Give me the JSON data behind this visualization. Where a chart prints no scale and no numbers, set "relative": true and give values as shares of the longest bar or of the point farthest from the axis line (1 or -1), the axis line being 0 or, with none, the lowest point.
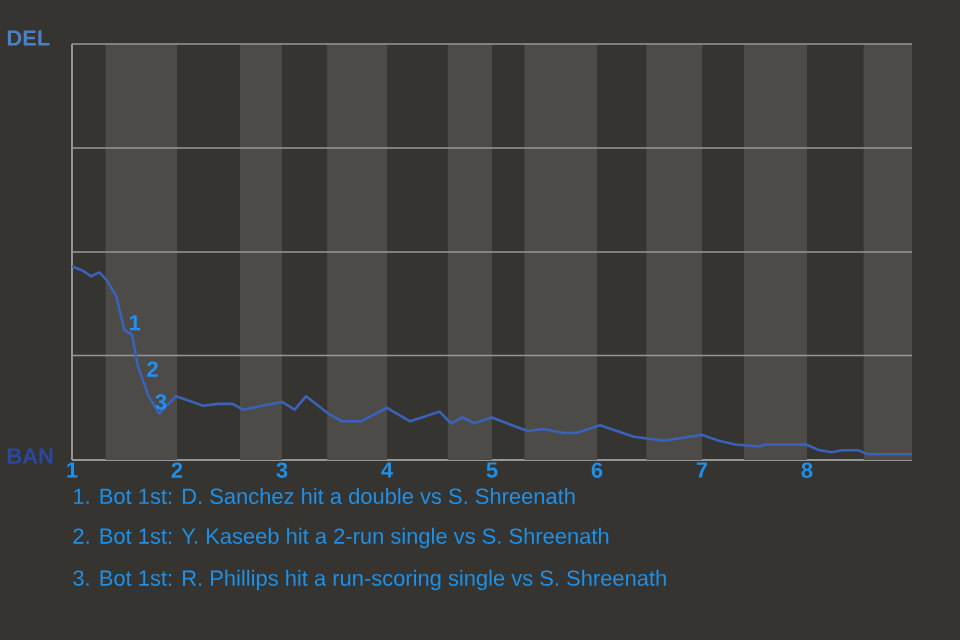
{
  "chart_data": {
    "type": "line",
    "relative": true,
    "xlim": [
      1,
      9
    ],
    "xticks": [
      1,
      2,
      3,
      4,
      5,
      6,
      7,
      8
    ],
    "marker": "none",
    "ref_lines": [
      {
        "axis": "y",
        "value": 0.54,
        "color": "#969696"
      }
    ],
    "line_style": "solid",
    "series": [
      {
        "color": "#3a62b8",
        "x": [
          1.0,
          1.1,
          1.18,
          1.26,
          1.33,
          1.42,
          1.5,
          1.57,
          1.63,
          1.73,
          1.83,
          1.99,
          2.25,
          2.39,
          2.53,
          2.63,
          2.81,
          3.0,
          3.12,
          3.23,
          3.44,
          3.57,
          3.75,
          4.0,
          4.22,
          4.33,
          4.5,
          4.61,
          4.72,
          4.83,
          5.0,
          5.19,
          5.34,
          5.49,
          5.68,
          5.8,
          6.03,
          6.35,
          6.63,
          7.0,
          7.16,
          7.32,
          7.55,
          7.6,
          7.99,
          8.12,
          8.24,
          8.33,
          8.49,
          8.58,
          9.0
        ],
        "values": [
          1.0,
          0.98,
          0.95,
          0.97,
          0.93,
          0.85,
          0.67,
          0.65,
          0.48,
          0.33,
          0.24,
          0.33,
          0.28,
          0.29,
          0.29,
          0.26,
          0.28,
          0.3,
          0.26,
          0.33,
          0.24,
          0.2,
          0.2,
          0.27,
          0.2,
          0.22,
          0.25,
          0.19,
          0.22,
          0.19,
          0.22,
          0.18,
          0.15,
          0.16,
          0.14,
          0.14,
          0.18,
          0.12,
          0.1,
          0.13,
          0.1,
          0.08,
          0.07,
          0.08,
          0.08,
          0.05,
          0.04,
          0.05,
          0.05,
          0.03,
          0.03
        ]
      }
    ],
    "bands": [
      {
        "axis": "x",
        "from": 1.32,
        "to": 2,
        "color": "#4d4b48"
      },
      {
        "axis": "x",
        "from": 2.6,
        "to": 3,
        "color": "#4d4b48"
      },
      {
        "axis": "x",
        "from": 3.43,
        "to": 4,
        "color": "#4d4b48"
      },
      {
        "axis": "x",
        "from": 4.58,
        "to": 5,
        "color": "#4d4b48"
      },
      {
        "axis": "x",
        "from": 5.31,
        "to": 6,
        "color": "#4d4b48"
      },
      {
        "axis": "x",
        "from": 6.47,
        "to": 7,
        "color": "#4d4b48"
      },
      {
        "axis": "x",
        "from": 7.4,
        "to": 8,
        "color": "#4d4b48"
      },
      {
        "axis": "x",
        "from": 8.54,
        "to": 9,
        "color": "#4d4b48"
      }
    ],
    "annotations": [
      "DEL",
      "BAN",
      {
        "text": "1",
        "x": 1.54,
        "y": 0.71
      },
      {
        "text": "2",
        "x": 1.71,
        "y": 0.47
      },
      {
        "text": "3",
        "x": 1.79,
        "y": 0.3
      },
      "1. Bot 1st: D. Sanchez hit a double vs S. Shreenath",
      "2. Bot 1st: Y. Kaseeb hit a 2-run single vs S. Shreenath",
      "3. Bot 1st: R. Phillips hit a run-scoring single vs S. Shreenath"
    ]
  }
}
